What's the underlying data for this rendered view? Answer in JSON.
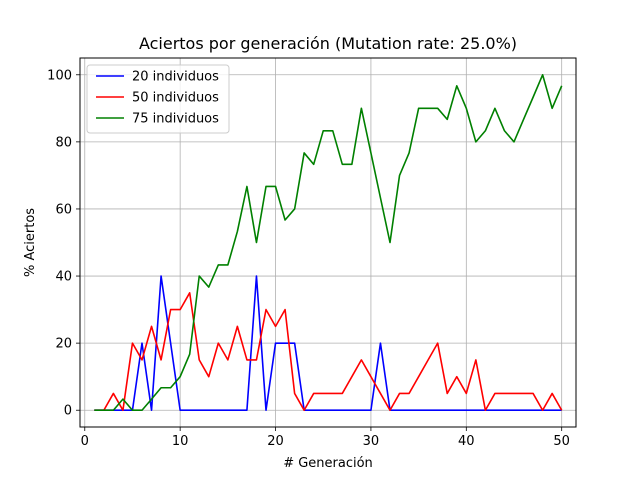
{
  "chart_data": {
    "type": "line",
    "title": "Aciertos por generación (Mutation rate: 25.0%)",
    "xlabel": "# Generación",
    "ylabel": "% Aciertos",
    "xlim": [
      -0.5,
      51.5
    ],
    "ylim": [
      -5,
      105
    ],
    "xticks": [
      0,
      10,
      20,
      30,
      40,
      50
    ],
    "yticks": [
      0,
      20,
      40,
      60,
      80,
      100
    ],
    "grid": true,
    "legend_position": "top-left",
    "x": [
      1,
      2,
      3,
      4,
      5,
      6,
      7,
      8,
      9,
      10,
      11,
      12,
      13,
      14,
      15,
      16,
      17,
      18,
      19,
      20,
      21,
      22,
      23,
      24,
      25,
      26,
      27,
      28,
      29,
      30,
      31,
      32,
      33,
      34,
      35,
      36,
      37,
      38,
      39,
      40,
      41,
      42,
      43,
      44,
      45,
      46,
      47,
      48,
      49,
      50
    ],
    "series": [
      {
        "name": "20 individuos",
        "color": "#0000ff",
        "values": [
          0,
          0,
          0,
          0,
          0,
          20,
          0,
          40,
          20,
          0,
          0,
          0,
          0,
          0,
          0,
          0,
          0,
          40,
          0,
          20,
          20,
          20,
          0,
          0,
          0,
          0,
          0,
          0,
          0,
          0,
          20,
          0,
          0,
          0,
          0,
          0,
          0,
          0,
          0,
          0,
          0,
          0,
          0,
          0,
          0,
          0,
          0,
          0,
          0,
          0
        ]
      },
      {
        "name": "50 individuos",
        "color": "#ff0000",
        "values": [
          0,
          0,
          5,
          0,
          20,
          15,
          25,
          15,
          30,
          30,
          35,
          15,
          10,
          20,
          15,
          25,
          15,
          15,
          30,
          25,
          30,
          5,
          0,
          5,
          5,
          5,
          5,
          10,
          15,
          10,
          5,
          0,
          5,
          5,
          10,
          15,
          20,
          5,
          10,
          5,
          15,
          0,
          5,
          5,
          5,
          5,
          5,
          0,
          5,
          0
        ]
      },
      {
        "name": "75 individuos",
        "color": "#008000",
        "values": [
          0,
          0,
          0,
          3.3,
          0,
          0,
          3.3,
          6.7,
          6.7,
          10,
          16.7,
          40,
          36.7,
          43.3,
          43.3,
          53.3,
          66.7,
          50,
          66.7,
          66.7,
          56.7,
          60,
          76.7,
          73.3,
          83.3,
          83.3,
          73.3,
          73.3,
          90,
          76.7,
          63.3,
          50,
          70,
          76.7,
          90,
          90,
          90,
          86.7,
          96.7,
          90,
          80,
          83.3,
          90,
          83.3,
          80,
          86.7,
          93.3,
          100,
          90,
          96.7
        ]
      }
    ]
  }
}
